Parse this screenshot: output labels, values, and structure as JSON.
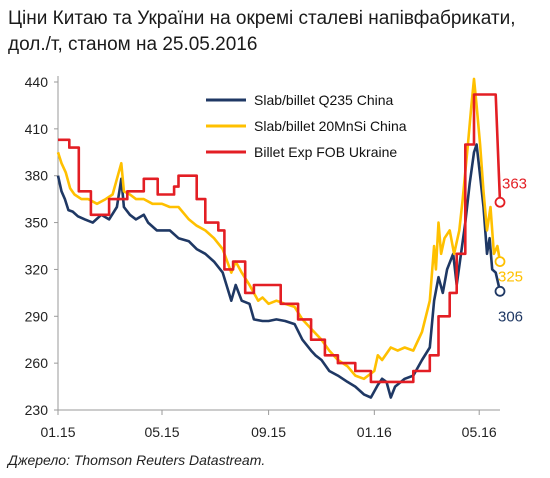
{
  "chart_data": {
    "type": "line",
    "title": "Ціни Китаю та України на окремі сталеві напівфабрикати, дол./т, станом на 25.05.2016",
    "source": "Джерело: Thomson Reuters Datastream.",
    "xlabel": "",
    "ylabel": "",
    "ylim": [
      230,
      440
    ],
    "yticks": [
      230,
      260,
      290,
      320,
      350,
      380,
      410,
      440
    ],
    "xlim": [
      "2015-01-01",
      "2016-05-25"
    ],
    "xticks": [
      {
        "date": "2015-01-01",
        "label": "01.15"
      },
      {
        "date": "2015-05-01",
        "label": "05.15"
      },
      {
        "date": "2015-09-01",
        "label": "09.15"
      },
      {
        "date": "2016-01-01",
        "label": "01.16"
      },
      {
        "date": "2016-05-01",
        "label": "05.16"
      }
    ],
    "legend_position": "top-right",
    "grid": false,
    "series": [
      {
        "name": "Slab/billet Q235 China",
        "color": "#1f3864",
        "end_label": "306",
        "points": [
          [
            "2015-01-01",
            380
          ],
          [
            "2015-01-05",
            370
          ],
          [
            "2015-01-09",
            365
          ],
          [
            "2015-01-13",
            358
          ],
          [
            "2015-01-18",
            357
          ],
          [
            "2015-01-24",
            354
          ],
          [
            "2015-02-01",
            352
          ],
          [
            "2015-02-10",
            350
          ],
          [
            "2015-02-20",
            355
          ],
          [
            "2015-03-01",
            352
          ],
          [
            "2015-03-10",
            360
          ],
          [
            "2015-03-15",
            378
          ],
          [
            "2015-03-18",
            360
          ],
          [
            "2015-03-25",
            355
          ],
          [
            "2015-04-01",
            352
          ],
          [
            "2015-04-10",
            355
          ],
          [
            "2015-04-15",
            350
          ],
          [
            "2015-04-25",
            345
          ],
          [
            "2015-05-01",
            345
          ],
          [
            "2015-05-10",
            345
          ],
          [
            "2015-05-20",
            340
          ],
          [
            "2015-06-01",
            338
          ],
          [
            "2015-06-10",
            333
          ],
          [
            "2015-06-20",
            330
          ],
          [
            "2015-06-30",
            325
          ],
          [
            "2015-07-10",
            318
          ],
          [
            "2015-07-20",
            300
          ],
          [
            "2015-07-25",
            310
          ],
          [
            "2015-08-01",
            300
          ],
          [
            "2015-08-10",
            298
          ],
          [
            "2015-08-15",
            288
          ],
          [
            "2015-08-25",
            287
          ],
          [
            "2015-09-01",
            287
          ],
          [
            "2015-09-10",
            288
          ],
          [
            "2015-09-20",
            287
          ],
          [
            "2015-10-01",
            285
          ],
          [
            "2015-10-10",
            275
          ],
          [
            "2015-10-20",
            268
          ],
          [
            "2015-10-25",
            265
          ],
          [
            "2015-11-01",
            262
          ],
          [
            "2015-11-10",
            255
          ],
          [
            "2015-11-20",
            252
          ],
          [
            "2015-12-01",
            248
          ],
          [
            "2015-12-10",
            245
          ],
          [
            "2015-12-20",
            240
          ],
          [
            "2015-12-28",
            238
          ],
          [
            "2016-01-05",
            246
          ],
          [
            "2016-01-10",
            250
          ],
          [
            "2016-01-15",
            248
          ],
          [
            "2016-01-20",
            238
          ],
          [
            "2016-01-25",
            245
          ],
          [
            "2016-02-05",
            250
          ],
          [
            "2016-02-15",
            252
          ],
          [
            "2016-02-25",
            262
          ],
          [
            "2016-03-05",
            270
          ],
          [
            "2016-03-10",
            300
          ],
          [
            "2016-03-15",
            315
          ],
          [
            "2016-03-20",
            305
          ],
          [
            "2016-03-25",
            320
          ],
          [
            "2016-04-01",
            330
          ],
          [
            "2016-04-05",
            310
          ],
          [
            "2016-04-10",
            330
          ],
          [
            "2016-04-15",
            350
          ],
          [
            "2016-04-20",
            375
          ],
          [
            "2016-04-25",
            395
          ],
          [
            "2016-04-28",
            400
          ],
          [
            "2016-05-02",
            380
          ],
          [
            "2016-05-06",
            360
          ],
          [
            "2016-05-10",
            330
          ],
          [
            "2016-05-13",
            340
          ],
          [
            "2016-05-16",
            320
          ],
          [
            "2016-05-20",
            318
          ],
          [
            "2016-05-25",
            306
          ]
        ]
      },
      {
        "name": "Slab/billet 20MnSi China",
        "color": "#ffc000",
        "end_label": "325",
        "points": [
          [
            "2015-01-01",
            395
          ],
          [
            "2015-01-05",
            388
          ],
          [
            "2015-01-10",
            382
          ],
          [
            "2015-01-15",
            372
          ],
          [
            "2015-01-20",
            368
          ],
          [
            "2015-01-28",
            365
          ],
          [
            "2015-02-05",
            365
          ],
          [
            "2015-02-15",
            362
          ],
          [
            "2015-02-25",
            365
          ],
          [
            "2015-03-05",
            368
          ],
          [
            "2015-03-15",
            388
          ],
          [
            "2015-03-18",
            370
          ],
          [
            "2015-03-25",
            368
          ],
          [
            "2015-04-01",
            365
          ],
          [
            "2015-04-10",
            365
          ],
          [
            "2015-04-20",
            362
          ],
          [
            "2015-05-01",
            362
          ],
          [
            "2015-05-10",
            360
          ],
          [
            "2015-05-20",
            360
          ],
          [
            "2015-06-01",
            352
          ],
          [
            "2015-06-10",
            348
          ],
          [
            "2015-06-20",
            345
          ],
          [
            "2015-06-30",
            340
          ],
          [
            "2015-07-10",
            333
          ],
          [
            "2015-07-20",
            318
          ],
          [
            "2015-07-25",
            325
          ],
          [
            "2015-08-01",
            318
          ],
          [
            "2015-08-10",
            310
          ],
          [
            "2015-08-20",
            300
          ],
          [
            "2015-08-25",
            302
          ],
          [
            "2015-09-01",
            298
          ],
          [
            "2015-09-10",
            300
          ],
          [
            "2015-09-20",
            298
          ],
          [
            "2015-10-01",
            296
          ],
          [
            "2015-10-10",
            288
          ],
          [
            "2015-10-20",
            282
          ],
          [
            "2015-11-01",
            275
          ],
          [
            "2015-11-10",
            268
          ],
          [
            "2015-11-20",
            262
          ],
          [
            "2015-12-01",
            258
          ],
          [
            "2015-12-10",
            252
          ],
          [
            "2015-12-20",
            250
          ],
          [
            "2016-01-01",
            255
          ],
          [
            "2016-01-05",
            265
          ],
          [
            "2016-01-10",
            262
          ],
          [
            "2016-01-20",
            270
          ],
          [
            "2016-01-28",
            268
          ],
          [
            "2016-02-05",
            270
          ],
          [
            "2016-02-15",
            268
          ],
          [
            "2016-02-25",
            280
          ],
          [
            "2016-03-05",
            300
          ],
          [
            "2016-03-10",
            335
          ],
          [
            "2016-03-12",
            320
          ],
          [
            "2016-03-15",
            350
          ],
          [
            "2016-03-18",
            330
          ],
          [
            "2016-03-22",
            340
          ],
          [
            "2016-03-28",
            345
          ],
          [
            "2016-04-02",
            330
          ],
          [
            "2016-04-08",
            345
          ],
          [
            "2016-04-12",
            365
          ],
          [
            "2016-04-18",
            400
          ],
          [
            "2016-04-22",
            425
          ],
          [
            "2016-04-25",
            442
          ],
          [
            "2016-04-28",
            425
          ],
          [
            "2016-05-02",
            400
          ],
          [
            "2016-05-06",
            370
          ],
          [
            "2016-05-10",
            345
          ],
          [
            "2016-05-14",
            360
          ],
          [
            "2016-05-18",
            330
          ],
          [
            "2016-05-22",
            335
          ],
          [
            "2016-05-25",
            325
          ]
        ]
      },
      {
        "name": "Billet Exp FOB Ukraine",
        "color": "#e31e24",
        "end_label": "363",
        "points": [
          [
            "2015-01-01",
            403
          ],
          [
            "2015-01-14",
            403
          ],
          [
            "2015-01-14",
            398
          ],
          [
            "2015-01-25",
            398
          ],
          [
            "2015-01-25",
            370
          ],
          [
            "2015-02-08",
            370
          ],
          [
            "2015-02-08",
            355
          ],
          [
            "2015-03-01",
            355
          ],
          [
            "2015-03-01",
            365
          ],
          [
            "2015-03-22",
            365
          ],
          [
            "2015-03-22",
            370
          ],
          [
            "2015-04-10",
            370
          ],
          [
            "2015-04-10",
            378
          ],
          [
            "2015-04-26",
            378
          ],
          [
            "2015-04-26",
            368
          ],
          [
            "2015-05-15",
            368
          ],
          [
            "2015-05-15",
            373
          ],
          [
            "2015-05-20",
            373
          ],
          [
            "2015-05-20",
            380
          ],
          [
            "2015-06-10",
            380
          ],
          [
            "2015-06-10",
            365
          ],
          [
            "2015-06-20",
            365
          ],
          [
            "2015-06-20",
            350
          ],
          [
            "2015-07-05",
            350
          ],
          [
            "2015-07-05",
            345
          ],
          [
            "2015-07-12",
            345
          ],
          [
            "2015-07-12",
            320
          ],
          [
            "2015-07-22",
            320
          ],
          [
            "2015-07-22",
            325
          ],
          [
            "2015-08-05",
            325
          ],
          [
            "2015-08-05",
            305
          ],
          [
            "2015-08-15",
            305
          ],
          [
            "2015-08-15",
            310
          ],
          [
            "2015-09-15",
            310
          ],
          [
            "2015-09-15",
            298
          ],
          [
            "2015-10-05",
            298
          ],
          [
            "2015-10-05",
            288
          ],
          [
            "2015-10-20",
            288
          ],
          [
            "2015-10-20",
            275
          ],
          [
            "2015-11-05",
            275
          ],
          [
            "2015-11-05",
            265
          ],
          [
            "2015-11-20",
            265
          ],
          [
            "2015-11-20",
            260
          ],
          [
            "2015-12-10",
            260
          ],
          [
            "2015-12-10",
            255
          ],
          [
            "2015-12-28",
            255
          ],
          [
            "2015-12-28",
            248
          ],
          [
            "2016-02-15",
            248
          ],
          [
            "2016-02-15",
            255
          ],
          [
            "2016-03-05",
            255
          ],
          [
            "2016-03-05",
            265
          ],
          [
            "2016-03-15",
            265
          ],
          [
            "2016-03-15",
            290
          ],
          [
            "2016-03-28",
            290
          ],
          [
            "2016-03-28",
            305
          ],
          [
            "2016-04-05",
            305
          ],
          [
            "2016-04-05",
            330
          ],
          [
            "2016-04-15",
            330
          ],
          [
            "2016-04-15",
            400
          ],
          [
            "2016-04-25",
            400
          ],
          [
            "2016-04-25",
            432
          ],
          [
            "2016-05-20",
            432
          ],
          [
            "2016-05-25",
            363
          ]
        ]
      }
    ]
  }
}
